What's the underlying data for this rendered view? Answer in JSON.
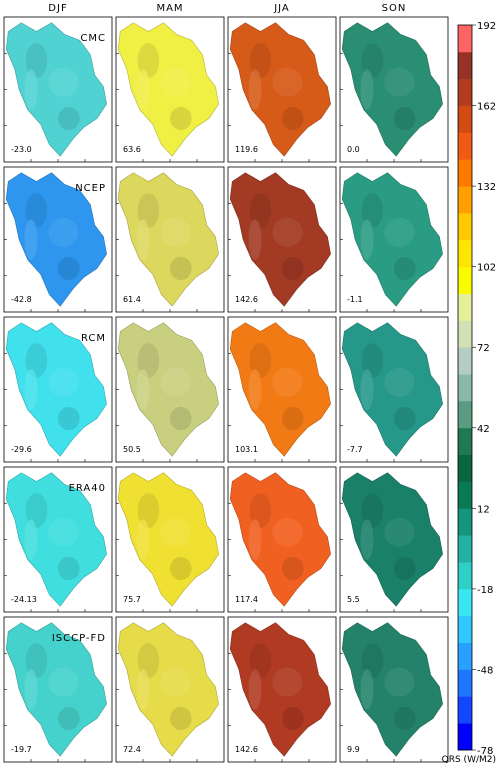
{
  "chart_data": {
    "type": "heatmap",
    "seasons": [
      "DJF",
      "MAM",
      "JJA",
      "SON"
    ],
    "sources": [
      "CMC",
      "NCEP",
      "RCM",
      "ERA40",
      "ISCCP-FD"
    ],
    "panel_values": [
      [
        "-23.0",
        "63.6",
        "119.6",
        "0.0"
      ],
      [
        "-42.8",
        "61.4",
        "142.6",
        "-1.1"
      ],
      [
        "-29.6",
        "50.5",
        "103.1",
        "-7.7"
      ],
      [
        "-24.13",
        "75.7",
        "117.4",
        "5.5"
      ],
      [
        "-19.7",
        "72.4",
        "142.6",
        "9.9"
      ]
    ],
    "colorbar": {
      "ticks": [
        "192",
        "162",
        "132",
        "102",
        "72",
        "42",
        "12",
        "-18",
        "-48",
        "-78"
      ],
      "tick_values": [
        192,
        162,
        132,
        102,
        72,
        42,
        12,
        -18,
        -48,
        -78
      ],
      "range": [
        -78,
        192
      ],
      "step": 10,
      "label": "QRS (W/M2)",
      "colors": [
        "#0000ff",
        "#1446ff",
        "#1e78ff",
        "#28a0ff",
        "#2fc8ff",
        "#3ae6f2",
        "#2dcfc6",
        "#22b2a4",
        "#14967e",
        "#0a7a56",
        "#0a6640",
        "#1f7a52",
        "#5a9c82",
        "#8ab8aa",
        "#b4ccc2",
        "#d2e0b4",
        "#e6f098",
        "#fafa00",
        "#ffe600",
        "#ffc800",
        "#ffa000",
        "#ff7800",
        "#f05a14",
        "#d24a14",
        "#b43c1e",
        "#963228",
        "#ff6464",
        "#ff3232",
        "#ff1010",
        "#ff0000",
        "#e60000",
        "#ff1e1e"
      ]
    },
    "panel_colors": [
      [
        "#50d2d2",
        "#f0ef44",
        "#d65a18",
        "#2a8e72"
      ],
      [
        "#2e96ee",
        "#dcd85e",
        "#a23a24",
        "#2a9c84"
      ],
      [
        "#40e0ec",
        "#c8d080",
        "#f27a14",
        "#26988a"
      ],
      [
        "#40dede",
        "#f0e032",
        "#f06020",
        "#1a806a"
      ],
      [
        "#46d2cc",
        "#e6dc4a",
        "#b03a22",
        "#24826a"
      ]
    ]
  }
}
